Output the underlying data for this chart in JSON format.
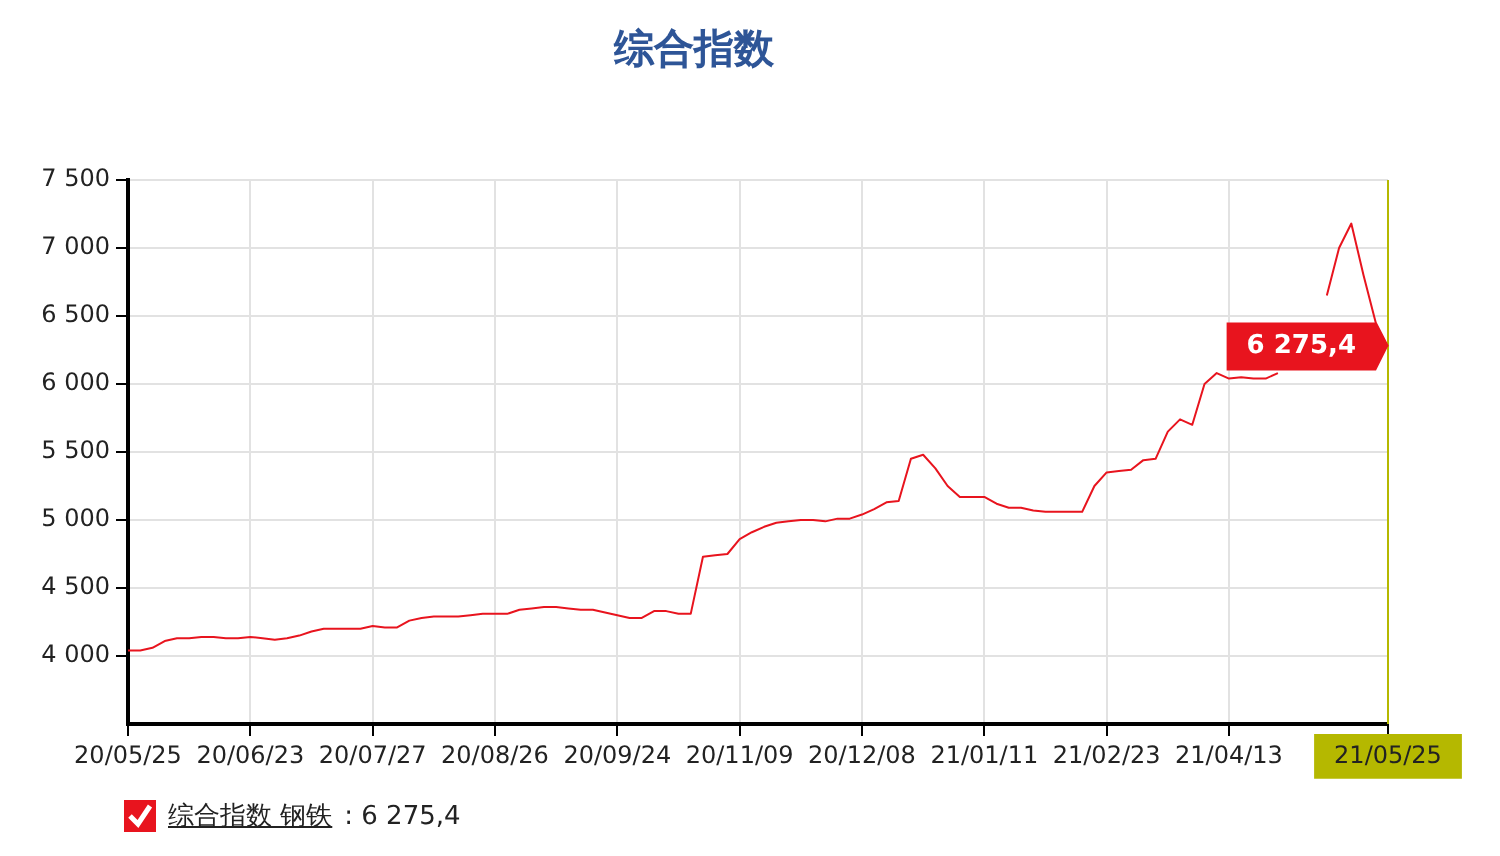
{
  "chart_data": {
    "type": "line",
    "title": "综合指数",
    "categories": [
      "20/05/25",
      null,
      null,
      null,
      null,
      null,
      null,
      null,
      null,
      null,
      "20/06/23",
      null,
      null,
      null,
      null,
      null,
      null,
      null,
      null,
      null,
      "20/07/27",
      null,
      null,
      null,
      null,
      null,
      null,
      null,
      null,
      null,
      "20/08/26",
      null,
      null,
      null,
      null,
      null,
      null,
      null,
      null,
      null,
      "20/09/24",
      null,
      null,
      null,
      null,
      null,
      null,
      null,
      null,
      null,
      "20/11/09",
      null,
      null,
      null,
      null,
      null,
      null,
      null,
      null,
      null,
      "20/12/08",
      null,
      null,
      null,
      null,
      null,
      null,
      null,
      null,
      null,
      "21/01/11",
      null,
      null,
      null,
      null,
      null,
      null,
      null,
      null,
      null,
      "21/02/23",
      null,
      null,
      null,
      null,
      null,
      null,
      null,
      null,
      null,
      "21/04/13",
      null,
      null,
      null,
      null,
      null,
      null,
      null,
      null,
      null,
      null,
      null,
      null,
      "21/05/25"
    ],
    "series": [
      {
        "name": "综合指数 钢铁",
        "color": "#e8141e",
        "values": [
          4040,
          4040,
          4060,
          4110,
          4130,
          4130,
          4140,
          4140,
          4130,
          4130,
          4140,
          4130,
          4120,
          4130,
          4150,
          4180,
          4200,
          4200,
          4200,
          4200,
          4220,
          4210,
          4210,
          4260,
          4280,
          4290,
          4290,
          4290,
          4300,
          4310,
          4310,
          4310,
          4340,
          4350,
          4360,
          4360,
          4350,
          4340,
          4340,
          4320,
          4300,
          4280,
          4280,
          4330,
          4330,
          4310,
          4310,
          4730,
          4740,
          4750,
          4860,
          4910,
          4950,
          4980,
          4990,
          5000,
          5000,
          4990,
          5010,
          5010,
          5040,
          5080,
          5130,
          5140,
          5450,
          5480,
          5380,
          5250,
          5170,
          5170,
          5170,
          5120,
          5090,
          5090,
          5070,
          5060,
          5060,
          5060,
          5060,
          5250,
          5350,
          5360,
          5370,
          5440,
          5450,
          5650,
          5740,
          5700,
          6000,
          6080,
          6040,
          6050,
          6040,
          6040,
          6080,
          null,
          null,
          null,
          6650,
          7000,
          7180,
          6800,
          6450,
          6275.4
        ]
      }
    ],
    "ylim": [
      3500,
      7500
    ],
    "yticks": [
      {
        "value": 4000,
        "label": "4 000"
      },
      {
        "value": 4500,
        "label": "4 500"
      },
      {
        "value": 5000,
        "label": "5 000"
      },
      {
        "value": 5500,
        "label": "5 500"
      },
      {
        "value": 6000,
        "label": "6 000"
      },
      {
        "value": 6500,
        "label": "6 500"
      },
      {
        "value": 7000,
        "label": "7 000"
      },
      {
        "value": 7500,
        "label": "7 500"
      }
    ],
    "grid": true,
    "legend": "bottom left",
    "marker": "none",
    "line_style": "solid",
    "ref_lines": [
      {
        "axis": "x",
        "value": "21/05/25",
        "color": "#b5b800"
      }
    ],
    "annotations": [
      {
        "text": "6 275,4",
        "x": "21/05/25",
        "y": 6275.4
      },
      ": 6 275,4"
    ]
  }
}
